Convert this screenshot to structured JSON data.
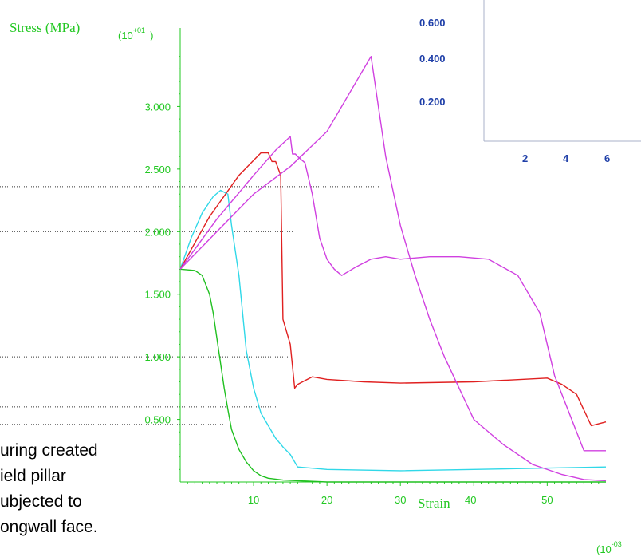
{
  "chart_data": [
    {
      "type": "line",
      "ylabel": "Stress (MPa)",
      "xlabel": "Strain",
      "y_scale_label": {
        "base": "(10",
        "exp": "+01",
        "close": ")"
      },
      "x_scale_label": {
        "base": "(10",
        "exp": "-03"
      },
      "xlim": [
        0,
        58
      ],
      "ylim": [
        0,
        3.5
      ],
      "x_ticks": [
        10,
        20,
        30,
        40,
        50
      ],
      "x_tick_labels": [
        "10",
        "20",
        "30",
        "40",
        "50"
      ],
      "y_ticks": [
        0.5,
        1.0,
        1.5,
        2.0,
        2.5,
        3.0
      ],
      "y_tick_labels": [
        "0.500",
        "1.000",
        "1.500",
        "2.000",
        "2.500",
        "3.000"
      ],
      "reference_lines_y": [
        2.36,
        2.0,
        1.0,
        0.6,
        0.46
      ],
      "colors": [
        "#20c020",
        "#30d8e8",
        "#e02020",
        "#d040e0",
        "#d040e0"
      ],
      "series": [
        {
          "x": [
            0,
            2,
            3,
            4,
            4.5,
            5,
            5.5,
            6,
            6.5,
            7,
            8,
            9,
            10,
            11,
            12,
            14,
            16,
            18,
            20,
            58
          ],
          "y": [
            1.7,
            1.69,
            1.65,
            1.5,
            1.35,
            1.15,
            0.95,
            0.75,
            0.58,
            0.42,
            0.26,
            0.16,
            0.09,
            0.05,
            0.03,
            0.015,
            0.01,
            0.005,
            0,
            0
          ]
        },
        {
          "x": [
            0,
            1.5,
            3,
            4.5,
            5.5,
            6.5,
            7,
            8,
            9,
            10,
            11,
            12,
            13,
            14,
            15,
            16,
            20,
            30,
            40,
            58
          ],
          "y": [
            1.7,
            1.95,
            2.15,
            2.28,
            2.33,
            2.3,
            2.05,
            1.65,
            1.05,
            0.75,
            0.55,
            0.45,
            0.35,
            0.28,
            0.22,
            0.12,
            0.1,
            0.09,
            0.1,
            0.12
          ]
        },
        {
          "x": [
            0,
            4,
            8,
            11,
            12,
            12.5,
            13,
            13.7,
            14,
            15,
            15.6,
            16,
            18,
            20,
            25,
            30,
            40,
            50,
            52,
            54,
            56,
            58
          ],
          "y": [
            1.7,
            2.12,
            2.45,
            2.63,
            2.63,
            2.56,
            2.56,
            2.45,
            1.3,
            1.1,
            0.75,
            0.78,
            0.84,
            0.82,
            0.8,
            0.79,
            0.8,
            0.83,
            0.78,
            0.7,
            0.45,
            0.48
          ]
        },
        {
          "x": [
            0,
            5,
            10,
            13,
            15,
            15.3,
            15.7,
            16,
            17,
            18,
            19,
            20,
            21,
            22,
            24,
            26,
            28,
            30,
            34,
            38,
            42,
            46,
            49,
            51,
            53,
            55,
            58
          ],
          "y": [
            1.7,
            2.1,
            2.45,
            2.65,
            2.76,
            2.62,
            2.62,
            2.6,
            2.55,
            2.3,
            1.95,
            1.78,
            1.7,
            1.65,
            1.72,
            1.78,
            1.8,
            1.78,
            1.8,
            1.8,
            1.78,
            1.65,
            1.35,
            0.85,
            0.55,
            0.25,
            0.25
          ]
        },
        {
          "x": [
            0,
            5,
            10,
            15,
            20,
            23,
            25,
            26,
            28,
            30,
            32,
            34,
            36,
            38,
            40,
            44,
            48,
            52,
            55,
            58
          ],
          "y": [
            1.7,
            2.0,
            2.3,
            2.52,
            2.8,
            3.1,
            3.3,
            3.4,
            2.6,
            2.05,
            1.65,
            1.3,
            1.0,
            0.75,
            0.5,
            0.3,
            0.14,
            0.06,
            0.02,
            0.01
          ]
        }
      ]
    },
    {
      "type": "line",
      "y_tick_labels": [
        "0.600",
        "0.400",
        "0.200"
      ],
      "x_tick_labels": [
        "2",
        "4",
        "6"
      ]
    }
  ],
  "caption_lines": [
    "uring created",
    "ield pillar",
    "ubjected to",
    "ongwall face."
  ]
}
